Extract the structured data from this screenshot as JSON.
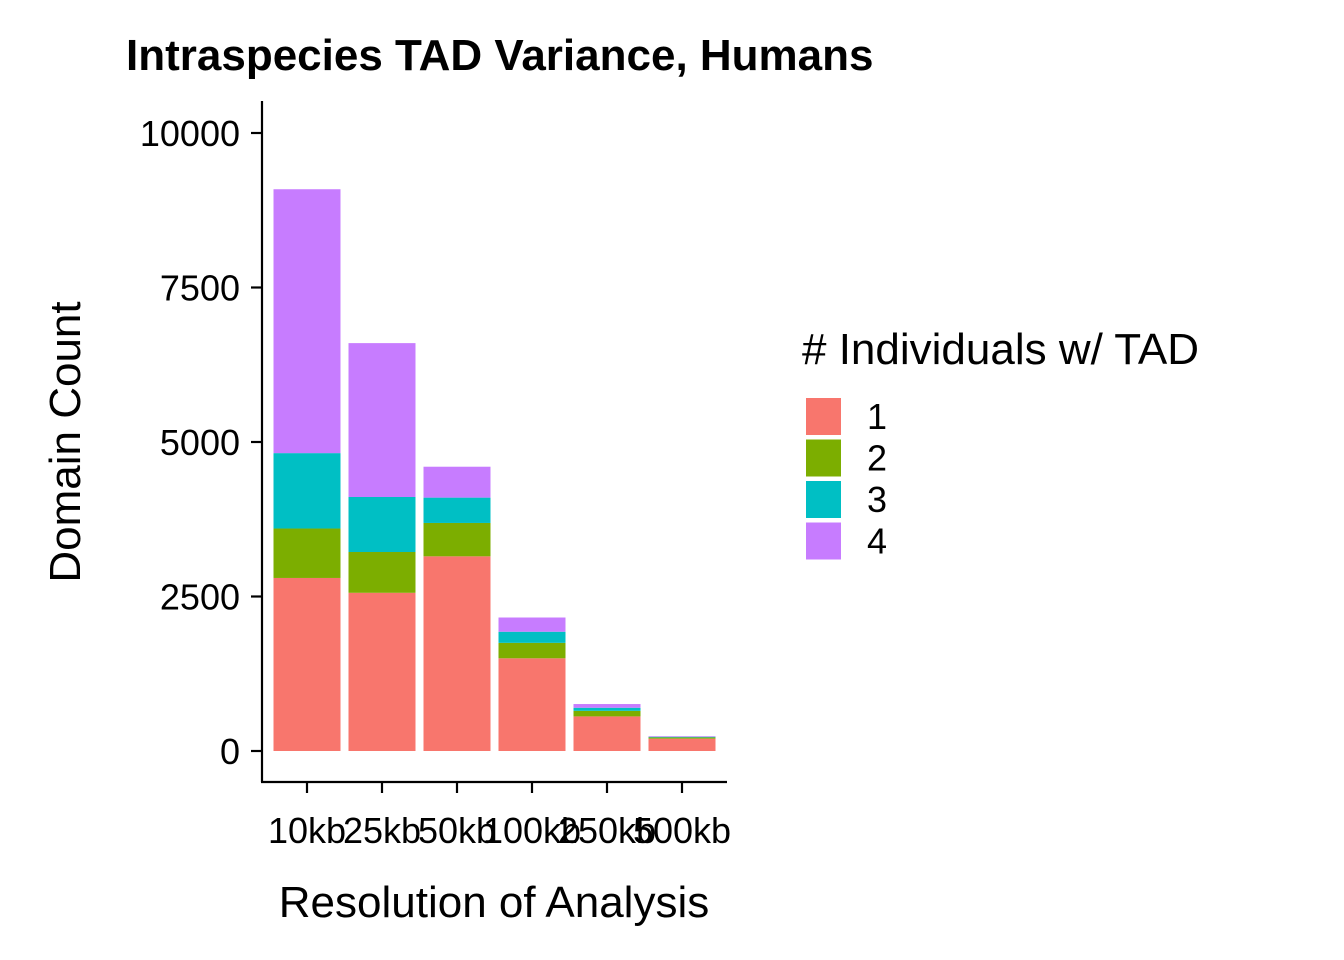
{
  "chart_data": {
    "type": "bar",
    "stacked": true,
    "title": "Intraspecies TAD Variance, Humans",
    "xlabel": "Resolution of Analysis",
    "ylabel": "Domain Count",
    "categories": [
      "10kb",
      "25kb",
      "50kb",
      "100kb",
      "250kb",
      "500kb"
    ],
    "ylim": [
      -500,
      10500
    ],
    "yticks": [
      0,
      2500,
      5000,
      7500,
      10000
    ],
    "grid": false,
    "legend_title": "# Individuals w/ TAD",
    "legend_position": "right",
    "series": [
      {
        "name": "1",
        "color": "#F8766D",
        "values": [
          2800,
          2560,
          3150,
          1500,
          560,
          200
        ]
      },
      {
        "name": "2",
        "color": "#7CAE00",
        "values": [
          800,
          660,
          540,
          250,
          90,
          20
        ]
      },
      {
        "name": "3",
        "color": "#00BFC4",
        "values": [
          1220,
          890,
          410,
          180,
          50,
          10
        ]
      },
      {
        "name": "4",
        "color": "#C77CFF",
        "values": [
          4270,
          2490,
          500,
          230,
          60,
          10
        ]
      }
    ]
  }
}
